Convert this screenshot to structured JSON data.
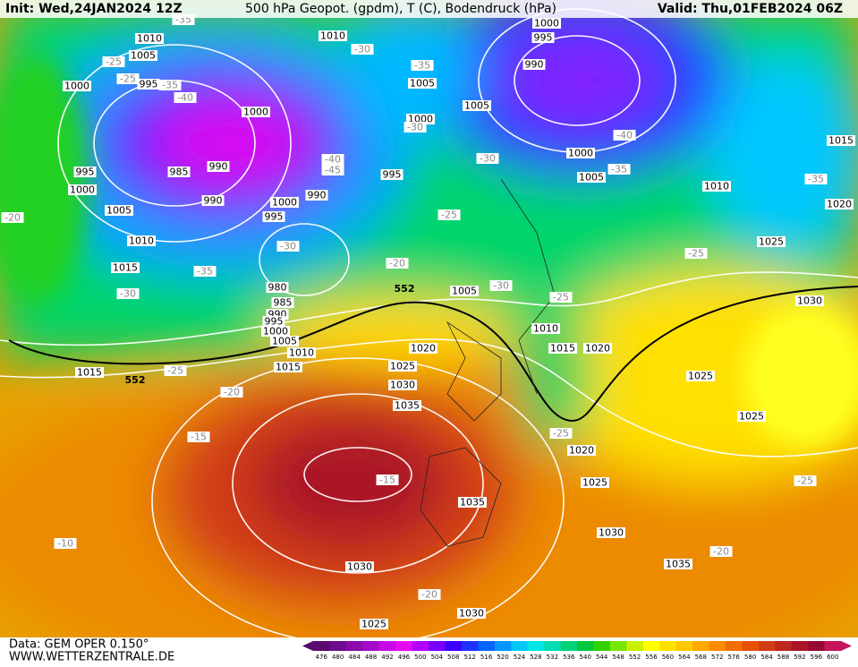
{
  "header": {
    "init": "Init: Wed,24JAN2024 12Z",
    "title": "500 hPa Geopot. (gpdm), T (C), Bodendruck (hPa)",
    "valid": "Valid: Thu,01FEB2024 06Z"
  },
  "footer": {
    "data": "Data: GEM OPER 0.150°",
    "site": "WWW.WETTERZENTRALE.DE"
  },
  "legend": {
    "ticks": [
      476,
      480,
      484,
      488,
      492,
      496,
      500,
      504,
      508,
      512,
      516,
      520,
      524,
      528,
      532,
      536,
      540,
      544,
      548,
      552,
      556,
      560,
      564,
      568,
      572,
      576,
      580,
      584,
      588,
      592,
      596,
      600
    ],
    "colors": [
      "#5a0a6e",
      "#6e0a8c",
      "#8a0aaa",
      "#a50ac8",
      "#c80ae6",
      "#e60af0",
      "#b400ff",
      "#7800ff",
      "#3c00ff",
      "#1e32ff",
      "#0064ff",
      "#0096ff",
      "#00c8ff",
      "#00e6e6",
      "#00dcb4",
      "#00d278",
      "#00c83c",
      "#32d200",
      "#78e600",
      "#c8f000",
      "#ffff00",
      "#ffe100",
      "#ffc800",
      "#ffaa00",
      "#ff8c00",
      "#f06e00",
      "#e65000",
      "#d23c14",
      "#be281e",
      "#aa1428",
      "#960a32",
      "#c8145a"
    ]
  },
  "isobar_labels": [
    "1010",
    "1005",
    "1000",
    "995",
    "995",
    "1000",
    "1005",
    "1010",
    "1015",
    "985",
    "990",
    "990",
    "1000",
    "995",
    "1000",
    "990",
    "980",
    "985",
    "990",
    "995",
    "1000",
    "1005",
    "1010",
    "1015",
    "1015",
    "1020",
    "1025",
    "1030",
    "1035",
    "1035",
    "1030",
    "1030",
    "1035",
    "1030",
    "1025",
    "1025",
    "1020",
    "1025",
    "1025",
    "1030",
    "1020",
    "1015",
    "1010",
    "1005",
    "1005",
    "1000",
    "995",
    "1005",
    "1010",
    "1000",
    "995",
    "990",
    "1000",
    "1005",
    "1010",
    "1025",
    "1020",
    "1015"
  ],
  "temperature_labels": [
    "-25",
    "-25",
    "-35",
    "-40",
    "-35",
    "-30",
    "-30",
    "-40",
    "-45",
    "-30",
    "-35",
    "-30",
    "-35",
    "-30",
    "-25",
    "-20",
    "-30",
    "-25",
    "-25",
    "-35",
    "-40",
    "-35",
    "-25",
    "-20",
    "-15",
    "-15",
    "-10",
    "-20",
    "-20",
    "-25",
    "-25",
    "-20"
  ],
  "height_labels": [
    "552",
    "552"
  ]
}
